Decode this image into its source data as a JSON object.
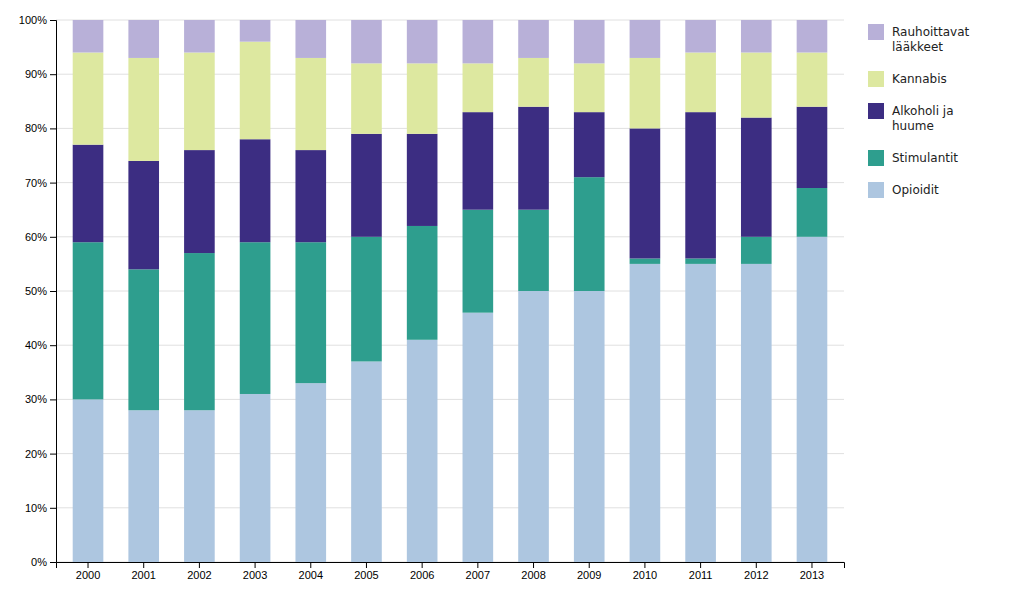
{
  "chart_data": {
    "type": "bar",
    "stacked": true,
    "grid": true,
    "legend": "right",
    "categories": [
      "2000",
      "2001",
      "2002",
      "2003",
      "2004",
      "2005",
      "2006",
      "2007",
      "2008",
      "2009",
      "2010",
      "2011",
      "2012",
      "2013"
    ],
    "series": [
      {
        "name": "Opioidit",
        "color": "#adc6e0",
        "values": [
          30,
          28,
          28,
          31,
          33,
          37,
          41,
          46,
          50,
          50,
          55,
          55,
          55,
          60
        ]
      },
      {
        "name": "Stimulantit",
        "color": "#2e9e8e",
        "values": [
          29,
          26,
          29,
          28,
          26,
          23,
          21,
          19,
          15,
          21,
          1,
          1,
          5,
          9
        ]
      },
      {
        "name": "Alkoholi ja\nhuume",
        "color": "#3c2d82",
        "values": [
          18,
          20,
          19,
          19,
          17,
          19,
          17,
          18,
          19,
          12,
          24,
          27,
          22,
          15
        ]
      },
      {
        "name": "Kannabis",
        "color": "#dde8a0",
        "values": [
          17,
          19,
          18,
          18,
          17,
          13,
          13,
          9,
          9,
          9,
          13,
          11,
          12,
          10
        ]
      },
      {
        "name": "Rauhoittavat\nlääkkeet",
        "color": "#b8b0d8",
        "values": [
          6,
          7,
          6,
          4,
          7,
          8,
          8,
          8,
          7,
          8,
          7,
          6,
          6,
          6
        ]
      }
    ],
    "ylim": [
      0,
      100
    ],
    "yticks": [
      {
        "value": 0,
        "label": "0%"
      },
      {
        "value": 10,
        "label": "10%"
      },
      {
        "value": 20,
        "label": "20%"
      },
      {
        "value": 30,
        "label": "30%"
      },
      {
        "value": 40,
        "label": "40%"
      },
      {
        "value": 50,
        "label": "50%"
      },
      {
        "value": 60,
        "label": "60%"
      },
      {
        "value": 70,
        "label": "70%"
      },
      {
        "value": 80,
        "label": "80%"
      },
      {
        "value": 90,
        "label": "90%"
      },
      {
        "value": 100,
        "label": "100%"
      }
    ]
  }
}
